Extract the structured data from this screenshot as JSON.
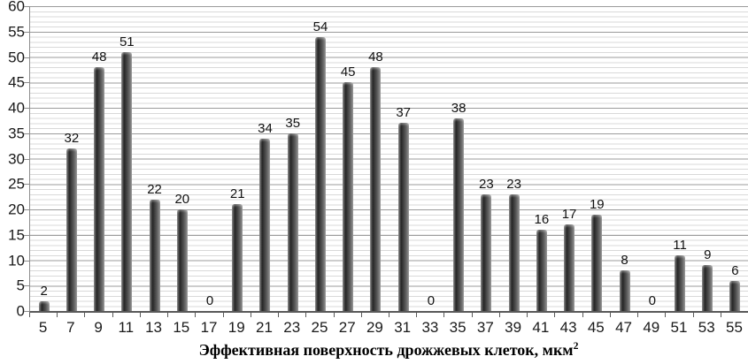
{
  "chart_data": {
    "type": "bar",
    "title": "",
    "categories": [
      "5",
      "7",
      "9",
      "11",
      "13",
      "15",
      "17",
      "19",
      "21",
      "23",
      "25",
      "27",
      "29",
      "31",
      "33",
      "35",
      "37",
      "39",
      "41",
      "43",
      "45",
      "47",
      "49",
      "51",
      "53",
      "55"
    ],
    "values": [
      2,
      32,
      48,
      51,
      22,
      20,
      0,
      21,
      34,
      35,
      54,
      45,
      48,
      37,
      0,
      38,
      23,
      23,
      16,
      17,
      19,
      8,
      0,
      11,
      9,
      6
    ],
    "xlabel": "Эффективная поверхность дрожжевых клеток, мкм²",
    "xlabel_main": "Эффективная поверхность дрожжевых клеток, мкм",
    "xlabel_sup": "2",
    "ylabel": "",
    "ylim": [
      0,
      60
    ],
    "ytick_step": 5,
    "minor_gridline_step": 1,
    "y_ticks": [
      "0",
      "5",
      "10",
      "15",
      "20",
      "25",
      "30",
      "35",
      "40",
      "45",
      "50",
      "55",
      "60"
    ],
    "grid": "on",
    "legend": "none",
    "data_labels": "above bars",
    "colors": {
      "bar": "#4d4d4d",
      "bar_highlight": "#8f8f8f",
      "major_gridline": "#9b9b9b",
      "minor_gridline": "#d9d9d9",
      "axis_line": "#595959",
      "text": "#1a1a1a",
      "background": "#ffffff"
    }
  }
}
